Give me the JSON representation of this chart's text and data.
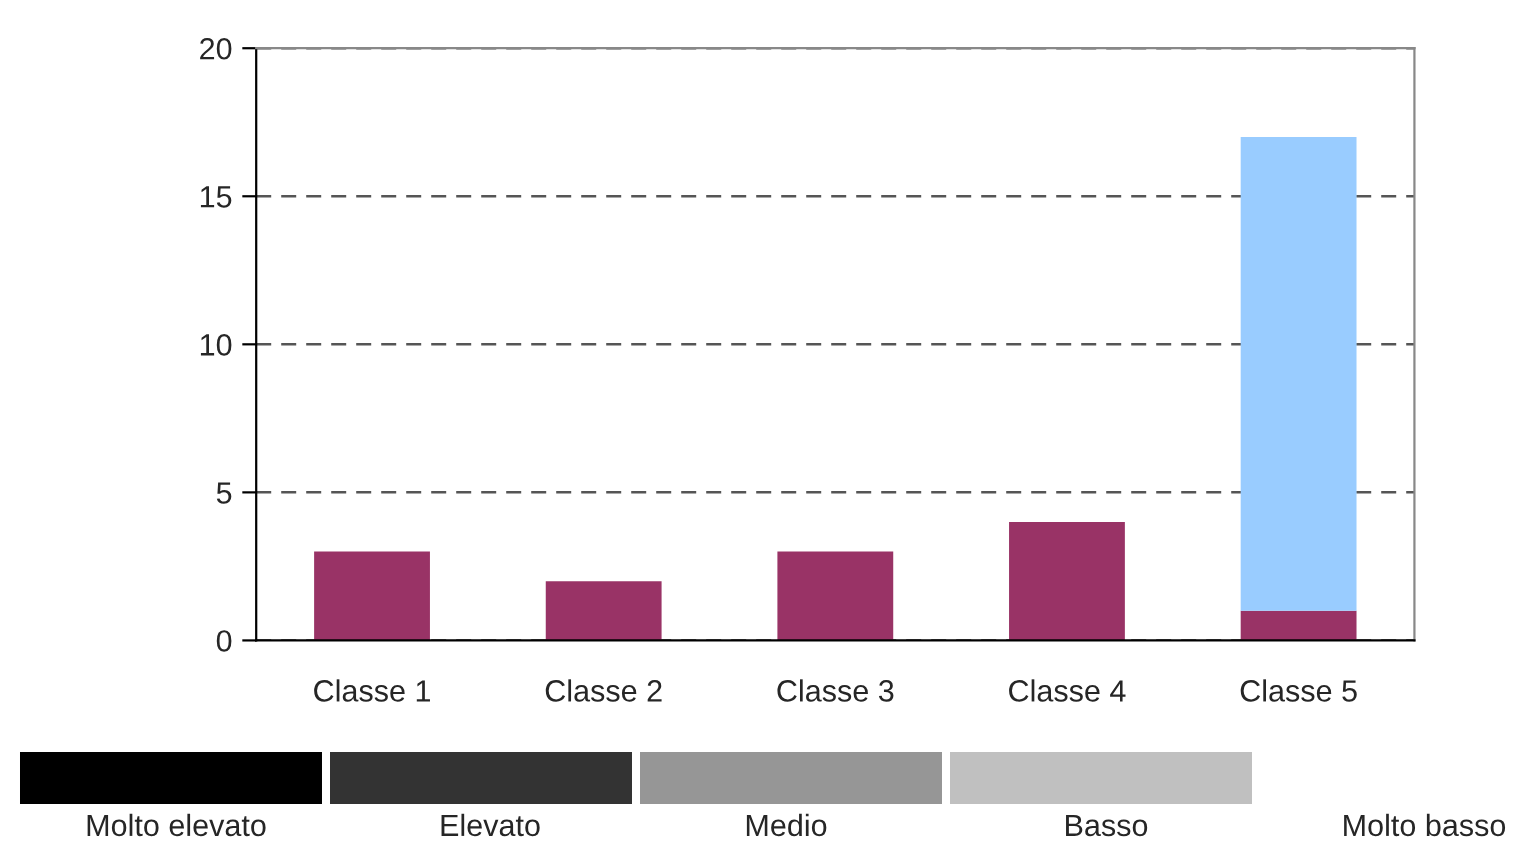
{
  "chart_data": {
    "type": "bar",
    "stacked": true,
    "categories": [
      "Classe 1",
      "Classe 2",
      "Classe 3",
      "Classe 4",
      "Classe 5"
    ],
    "series": [
      {
        "color": "#993366",
        "values": [
          3,
          2,
          3,
          4,
          1
        ]
      },
      {
        "color": "#99ccff",
        "values": [
          null,
          null,
          null,
          null,
          16
        ]
      }
    ],
    "ylim": [
      0,
      20
    ],
    "yticks": [
      0,
      5,
      10,
      15,
      20
    ],
    "grid": "y",
    "legend": false,
    "annotations": [
      "Molto elevato",
      "Elevato",
      "Medio",
      "Basso",
      "Molto basso"
    ]
  }
}
